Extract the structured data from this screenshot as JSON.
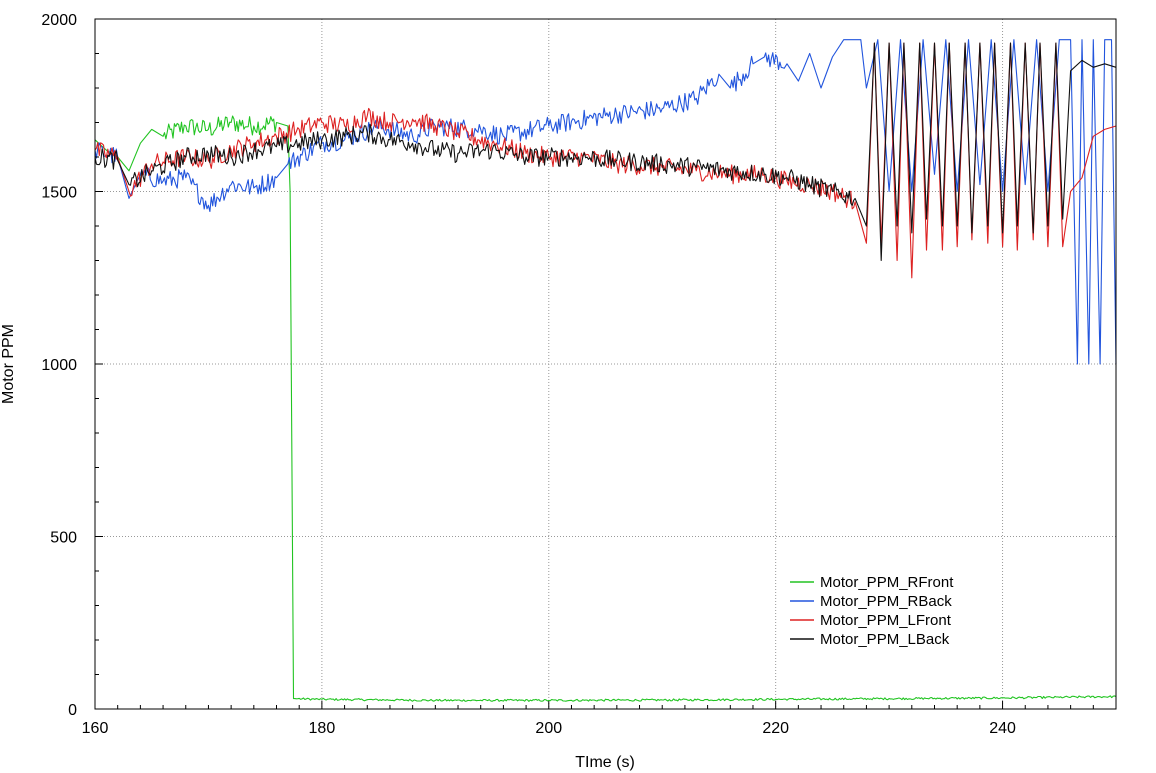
{
  "chart_data": {
    "type": "line",
    "title": "",
    "xlabel": "TIme (s)",
    "ylabel": "Motor PPM",
    "xlim": [
      160,
      250
    ],
    "ylim": [
      0,
      2000
    ],
    "x_ticks": [
      "160",
      "180",
      "200",
      "220",
      "240"
    ],
    "x_tick_values": [
      160,
      180,
      200,
      220,
      240
    ],
    "y_ticks": [
      "0",
      "500",
      "1000",
      "1500",
      "2000"
    ],
    "y_tick_values": [
      0,
      500,
      1000,
      1500,
      2000
    ],
    "grid": true,
    "legend_position": "bottom-right",
    "series": [
      {
        "name": "Motor_PPM_RFront",
        "color": "#22c422",
        "x": [
          160,
          161,
          162,
          163,
          164,
          165,
          166,
          168,
          170,
          172,
          174,
          176,
          177.0,
          177.2,
          177.5,
          180,
          190,
          200,
          210,
          220,
          230,
          240,
          245,
          250
        ],
        "y": [
          1650,
          1620,
          1600,
          1560,
          1640,
          1680,
          1660,
          1690,
          1680,
          1700,
          1690,
          1700,
          1690,
          1500,
          30,
          28,
          25,
          25,
          26,
          28,
          30,
          32,
          34,
          36
        ]
      },
      {
        "name": "Motor_PPM_RBack",
        "color": "#2255dd",
        "x": [
          160,
          162,
          163,
          164,
          166,
          168,
          170,
          172,
          174,
          176,
          177,
          180,
          182,
          185,
          188,
          190,
          194,
          196,
          200,
          205,
          210,
          213,
          215,
          216,
          218,
          219,
          221,
          222,
          223,
          224,
          225,
          226,
          227,
          227.5,
          228,
          229,
          230,
          231,
          232,
          233,
          234,
          235,
          236,
          237,
          238,
          239,
          240,
          241,
          242,
          243,
          244,
          245,
          246,
          246.6,
          247,
          247.6,
          248,
          248.6,
          249,
          249.6,
          250
        ],
        "y": [
          1620,
          1600,
          1480,
          1550,
          1530,
          1540,
          1460,
          1520,
          1510,
          1540,
          1580,
          1640,
          1650,
          1690,
          1660,
          1690,
          1680,
          1660,
          1690,
          1720,
          1740,
          1770,
          1840,
          1800,
          1870,
          1890,
          1870,
          1820,
          1900,
          1800,
          1890,
          1940,
          1940,
          1940,
          1800,
          1940,
          1500,
          1940,
          1500,
          1940,
          1550,
          1940,
          1500,
          1940,
          1520,
          1940,
          1500,
          1940,
          1520,
          1940,
          1500,
          1940,
          1940,
          1000,
          1940,
          1000,
          1940,
          1000,
          1940,
          1940,
          1000
        ]
      },
      {
        "name": "Motor_PPM_LFront",
        "color": "#dd2222",
        "x": [
          160,
          162,
          163,
          165,
          168,
          170,
          172,
          174,
          176,
          178,
          180,
          182,
          184,
          186,
          188,
          190,
          192,
          195,
          198,
          200,
          203,
          206,
          210,
          213,
          216,
          219,
          221,
          223,
          225,
          227,
          228,
          228.7,
          229.3,
          230,
          230.7,
          231.3,
          232,
          232.7,
          233.3,
          234,
          234.7,
          235.3,
          236,
          236.7,
          237.3,
          238,
          238.7,
          239.3,
          240,
          240.7,
          241.3,
          242,
          242.7,
          243.3,
          244,
          244.7,
          245.3,
          246,
          247,
          248,
          249,
          250
        ],
        "y": [
          1620,
          1600,
          1500,
          1580,
          1600,
          1590,
          1620,
          1640,
          1660,
          1680,
          1700,
          1690,
          1720,
          1700,
          1710,
          1690,
          1670,
          1640,
          1610,
          1600,
          1600,
          1580,
          1570,
          1560,
          1550,
          1550,
          1530,
          1520,
          1500,
          1470,
          1350,
          1930,
          1350,
          1930,
          1300,
          1930,
          1250,
          1930,
          1330,
          1930,
          1330,
          1930,
          1340,
          1930,
          1360,
          1930,
          1350,
          1930,
          1340,
          1930,
          1330,
          1930,
          1360,
          1930,
          1340,
          1930,
          1340,
          1500,
          1540,
          1660,
          1680,
          1690
        ]
      },
      {
        "name": "Motor_PPM_LBack",
        "color": "#111111",
        "x": [
          160,
          162,
          163,
          165,
          168,
          170,
          172,
          174,
          176,
          178,
          180,
          182,
          184,
          186,
          188,
          190,
          192,
          195,
          198,
          200,
          203,
          206,
          210,
          213,
          216,
          219,
          221,
          223,
          225,
          227,
          228,
          228.7,
          229.3,
          230,
          230.7,
          231.3,
          232,
          232.7,
          233.3,
          234,
          234.7,
          235.3,
          236,
          236.7,
          237.3,
          238,
          238.7,
          239.3,
          240,
          240.7,
          241.3,
          242,
          242.7,
          243.3,
          244,
          244.7,
          245.3,
          246,
          247,
          248,
          249,
          250
        ],
        "y": [
          1600,
          1590,
          1520,
          1560,
          1600,
          1610,
          1600,
          1620,
          1630,
          1640,
          1650,
          1660,
          1670,
          1650,
          1640,
          1620,
          1610,
          1620,
          1600,
          1600,
          1600,
          1590,
          1580,
          1570,
          1560,
          1550,
          1540,
          1520,
          1500,
          1480,
          1400,
          1930,
          1300,
          1930,
          1400,
          1930,
          1380,
          1930,
          1420,
          1930,
          1400,
          1930,
          1400,
          1930,
          1380,
          1930,
          1400,
          1930,
          1380,
          1930,
          1400,
          1930,
          1380,
          1930,
          1400,
          1930,
          1420,
          1850,
          1880,
          1860,
          1870,
          1860
        ]
      }
    ]
  }
}
